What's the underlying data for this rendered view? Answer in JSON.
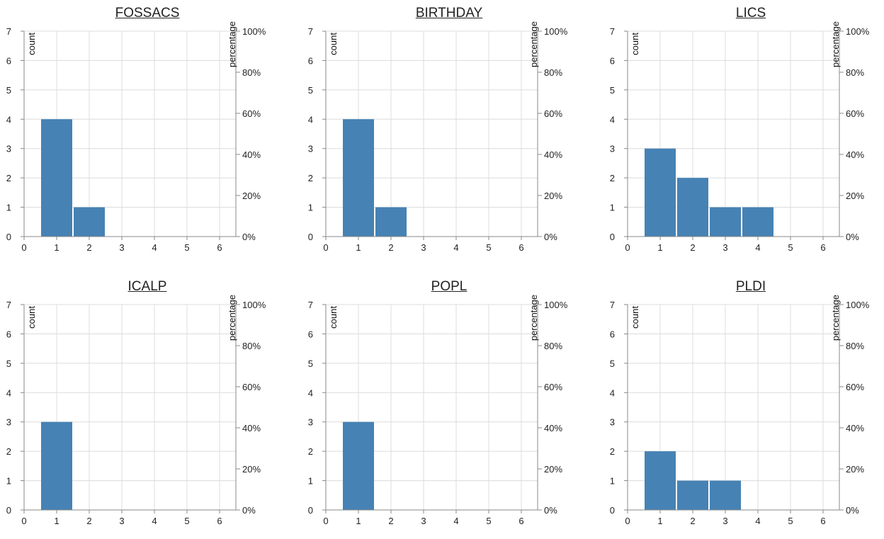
{
  "chart_data": [
    {
      "type": "bar",
      "title": "FOSSACS",
      "y_left_label": "count",
      "y_right_label": "percentage",
      "x": [
        1,
        2,
        3,
        4,
        5,
        6
      ],
      "values": [
        4,
        1,
        0,
        0,
        0,
        0
      ],
      "x_ticks": [
        "0",
        "1",
        "2",
        "3",
        "4",
        "5",
        "6"
      ],
      "y_ticks": [
        "0",
        "1",
        "2",
        "3",
        "4",
        "5",
        "6",
        "7"
      ],
      "pct_ticks": [
        "0%",
        "20%",
        "40%",
        "60%",
        "80%",
        "100%"
      ],
      "xlim": [
        0,
        6.5
      ],
      "ylim": [
        0,
        7
      ],
      "grid": true,
      "color": "#4682b4"
    },
    {
      "type": "bar",
      "title": "BIRTHDAY",
      "y_left_label": "count",
      "y_right_label": "percentage",
      "x": [
        1,
        2,
        3,
        4,
        5,
        6
      ],
      "values": [
        4,
        1,
        0,
        0,
        0,
        0
      ],
      "x_ticks": [
        "0",
        "1",
        "2",
        "3",
        "4",
        "5",
        "6"
      ],
      "y_ticks": [
        "0",
        "1",
        "2",
        "3",
        "4",
        "5",
        "6",
        "7"
      ],
      "pct_ticks": [
        "0%",
        "20%",
        "40%",
        "60%",
        "80%",
        "100%"
      ],
      "xlim": [
        0,
        6.5
      ],
      "ylim": [
        0,
        7
      ],
      "grid": true,
      "color": "#4682b4"
    },
    {
      "type": "bar",
      "title": "LICS",
      "y_left_label": "count",
      "y_right_label": "percentage",
      "x": [
        1,
        2,
        3,
        4,
        5,
        6
      ],
      "values": [
        3,
        2,
        1,
        1,
        0,
        0
      ],
      "x_ticks": [
        "0",
        "1",
        "2",
        "3",
        "4",
        "5",
        "6"
      ],
      "y_ticks": [
        "0",
        "1",
        "2",
        "3",
        "4",
        "5",
        "6",
        "7"
      ],
      "pct_ticks": [
        "0%",
        "20%",
        "40%",
        "60%",
        "80%",
        "100%"
      ],
      "xlim": [
        0,
        6.5
      ],
      "ylim": [
        0,
        7
      ],
      "grid": true,
      "color": "#4682b4"
    },
    {
      "type": "bar",
      "title": "ICALP",
      "y_left_label": "count",
      "y_right_label": "percentage",
      "x": [
        1,
        2,
        3,
        4,
        5,
        6
      ],
      "values": [
        3,
        0,
        0,
        0,
        0,
        0
      ],
      "x_ticks": [
        "0",
        "1",
        "2",
        "3",
        "4",
        "5",
        "6"
      ],
      "y_ticks": [
        "0",
        "1",
        "2",
        "3",
        "4",
        "5",
        "6",
        "7"
      ],
      "pct_ticks": [
        "0%",
        "20%",
        "40%",
        "60%",
        "80%",
        "100%"
      ],
      "xlim": [
        0,
        6.5
      ],
      "ylim": [
        0,
        7
      ],
      "grid": true,
      "color": "#4682b4"
    },
    {
      "type": "bar",
      "title": "POPL",
      "y_left_label": "count",
      "y_right_label": "percentage",
      "x": [
        1,
        2,
        3,
        4,
        5,
        6
      ],
      "values": [
        3,
        0,
        0,
        0,
        0,
        0
      ],
      "x_ticks": [
        "0",
        "1",
        "2",
        "3",
        "4",
        "5",
        "6"
      ],
      "y_ticks": [
        "0",
        "1",
        "2",
        "3",
        "4",
        "5",
        "6",
        "7"
      ],
      "pct_ticks": [
        "0%",
        "20%",
        "40%",
        "60%",
        "80%",
        "100%"
      ],
      "xlim": [
        0,
        6.5
      ],
      "ylim": [
        0,
        7
      ],
      "grid": true,
      "color": "#4682b4"
    },
    {
      "type": "bar",
      "title": "PLDI",
      "y_left_label": "count",
      "y_right_label": "percentage",
      "x": [
        1,
        2,
        3,
        4,
        5,
        6
      ],
      "values": [
        2,
        1,
        1,
        0,
        0,
        0
      ],
      "x_ticks": [
        "0",
        "1",
        "2",
        "3",
        "4",
        "5",
        "6"
      ],
      "y_ticks": [
        "0",
        "1",
        "2",
        "3",
        "4",
        "5",
        "6",
        "7"
      ],
      "pct_ticks": [
        "0%",
        "20%",
        "40%",
        "60%",
        "80%",
        "100%"
      ],
      "xlim": [
        0,
        6.5
      ],
      "ylim": [
        0,
        7
      ],
      "grid": true,
      "color": "#4682b4"
    }
  ]
}
